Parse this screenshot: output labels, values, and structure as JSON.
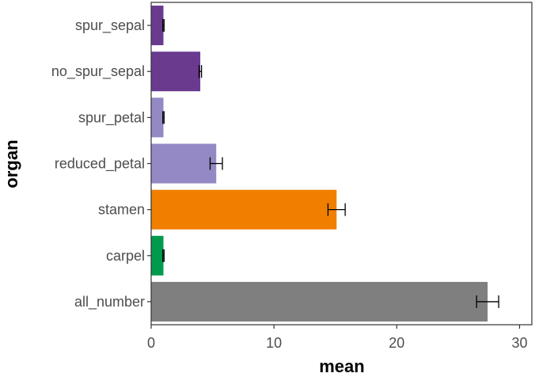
{
  "chart_data": {
    "type": "bar",
    "orientation": "horizontal",
    "title": "",
    "xlabel": "mean",
    "ylabel": "organ",
    "xlim": [
      0,
      31
    ],
    "xticks": [
      0,
      10,
      20,
      30
    ],
    "grid": false,
    "legend": "none",
    "categories": [
      "all_number",
      "carpel",
      "stamen",
      "reduced_petal",
      "spur_petal",
      "no_spur_sepal",
      "spur_sepal"
    ],
    "values": [
      27.4,
      1.0,
      15.1,
      5.3,
      1.0,
      4.0,
      1.0
    ],
    "error": [
      0.9,
      0.05,
      0.7,
      0.5,
      0.05,
      0.1,
      0.05
    ],
    "colors": [
      "#7f7f7f",
      "#009a4e",
      "#f07f00",
      "#9489c4",
      "#9489c4",
      "#6a3a8f",
      "#6a3a8f"
    ],
    "errorbar_color": "#000000"
  }
}
